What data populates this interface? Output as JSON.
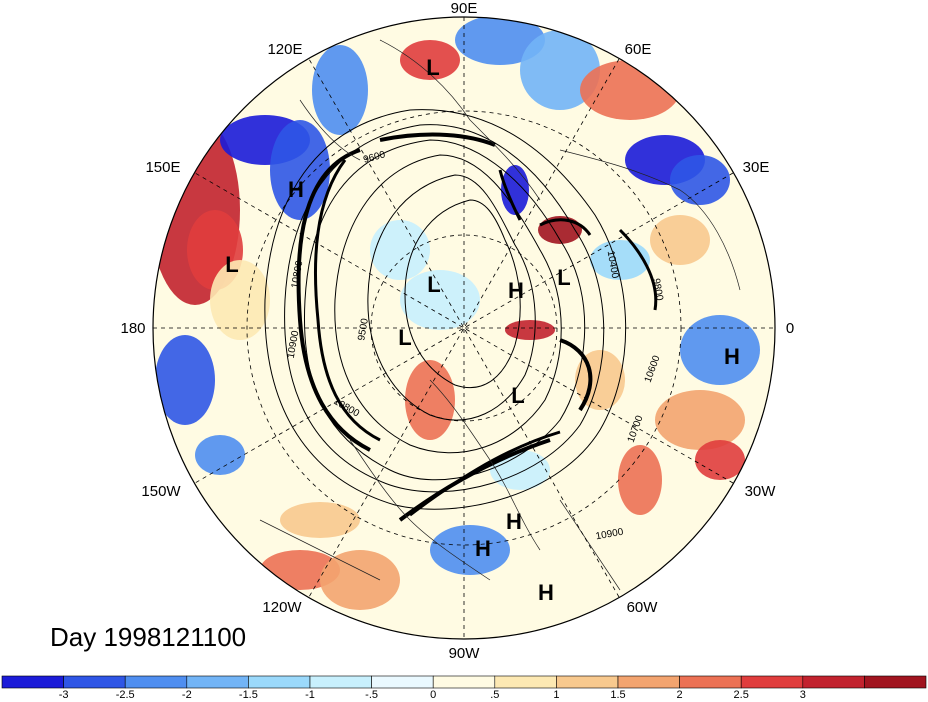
{
  "longitude_labels": [
    "90E",
    "60E",
    "30E",
    "0",
    "30W",
    "60W",
    "90W",
    "120W",
    "150W",
    "180",
    "150E",
    "120E"
  ],
  "pressure_centers": [
    "L",
    "H",
    "L",
    "L",
    "H",
    "L",
    "L",
    "L",
    "H",
    "H",
    "H",
    "H"
  ],
  "contour_labels": [
    "10800",
    "10900",
    "9500",
    "9600",
    "10400",
    "9800",
    "10600",
    "10700",
    "10800",
    "10900"
  ],
  "date_label": "Day 1998121100",
  "colorbar": {
    "colors": [
      "#1b1bd8",
      "#2f56e6",
      "#4f8ef0",
      "#72b4f6",
      "#9bd9fb",
      "#c8f0fd",
      "#eaf9ff",
      "#fffbe3",
      "#fde9b3",
      "#f8c98e",
      "#f3a46f",
      "#ec7154",
      "#e03d3d",
      "#c2222e",
      "#a1141f"
    ],
    "tick_labels": [
      "-3",
      "-2.5",
      "-2",
      "-1.5",
      "-1",
      "-.5",
      "0",
      ".5",
      "1",
      "1.5",
      "2",
      "2.5",
      "3"
    ]
  }
}
